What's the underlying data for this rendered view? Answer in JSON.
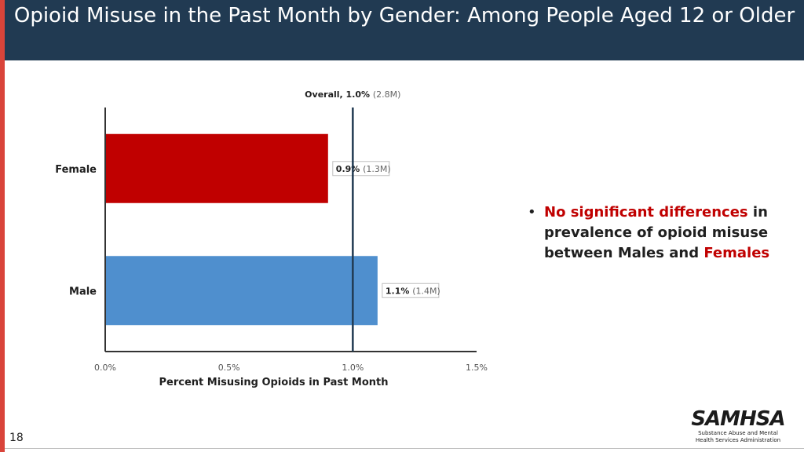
{
  "slide": {
    "title": "Opioid Misuse in the Past Month by Gender: Among People Aged 12 or Older",
    "page_number": "18"
  },
  "bullet": {
    "part1": "No significant differences",
    "part2": " in prevalence of opioid misuse between Males and ",
    "part3": "Females"
  },
  "logo": {
    "word": "SAMHSA",
    "subtitle": "Substance Abuse and Mental Health Services Administration"
  },
  "colors": {
    "header": "#213a52",
    "accent_stripe": "#d9443a",
    "female_bar": "#c00000",
    "male_bar": "#4f8fce",
    "reference_line": "#213a52",
    "highlight_text": "#c00000"
  },
  "chart_data": {
    "type": "bar",
    "orientation": "horizontal",
    "categories": [
      "Female",
      "Male"
    ],
    "values": [
      0.9,
      1.1
    ],
    "value_labels": [
      {
        "pct": "0.9%",
        "count": "(1.3M)"
      },
      {
        "pct": "1.1%",
        "count": "(1.4M)"
      }
    ],
    "reference_line": {
      "value": 1.0,
      "label_bold": "Overall, 1.0%",
      "label_count": "(2.8M)"
    },
    "xlabel": "Percent Misusing Opioids in Past Month",
    "xlim": [
      0,
      1.5
    ],
    "xticks": [
      0,
      0.5,
      1.0,
      1.5
    ],
    "xtick_labels": [
      "0.0%",
      "0.5%",
      "1.0%",
      "1.5%"
    ],
    "grid": false
  }
}
